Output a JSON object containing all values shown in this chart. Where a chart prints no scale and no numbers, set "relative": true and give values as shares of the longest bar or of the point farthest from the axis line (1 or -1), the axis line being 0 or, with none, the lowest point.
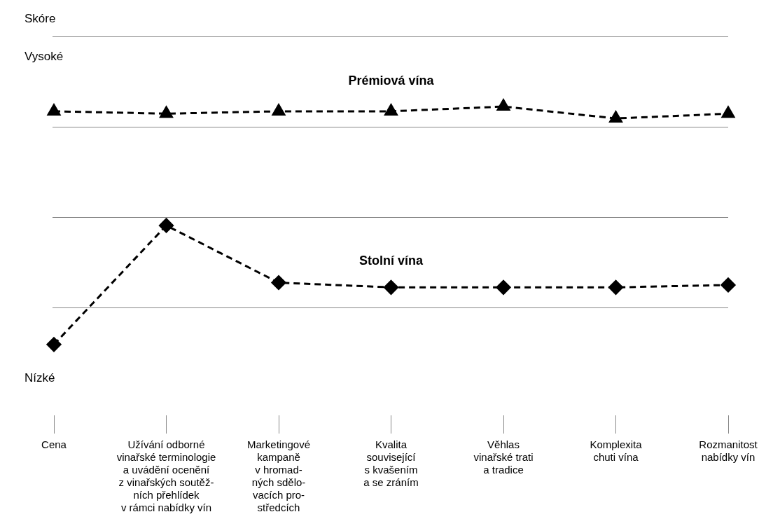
{
  "chart_data": {
    "type": "line",
    "relative": true,
    "annotations": [
      "Skóre",
      "Vysoké",
      "Nízké"
    ],
    "grid": "y",
    "legend": false,
    "categories": [
      "Cena",
      "Užívání odborné\nvinařské terminologie\na uvádění ocenění\nz vinařských soutěž-\nních přehlídek\nv rámci nabídky vín",
      "Marketingové\nkampaně\nv hromad-\nných sdělo-\nvacích pro-\nstředcích",
      "Kvalita\nsouvisející\ns kvašením\na se zráním",
      "Věhlas\nvinařské trati\na tradice",
      "Komplexita\nchuti vína",
      "Rozmanitost\nnabídky vín"
    ],
    "series": [
      {
        "name": "Prémiová vína",
        "color": "#000000",
        "marker": "triangle",
        "line_style": "dashed",
        "values": [
          0.98,
          0.97,
          0.98,
          0.98,
          1,
          0.95,
          0.97
        ]
      },
      {
        "name": "Stolní vína",
        "color": "#000000",
        "marker": "diamond",
        "line_style": "dashed",
        "values": [
          0,
          0.5,
          0.26,
          0.24,
          0.24,
          0.24,
          0.25
        ]
      }
    ]
  }
}
